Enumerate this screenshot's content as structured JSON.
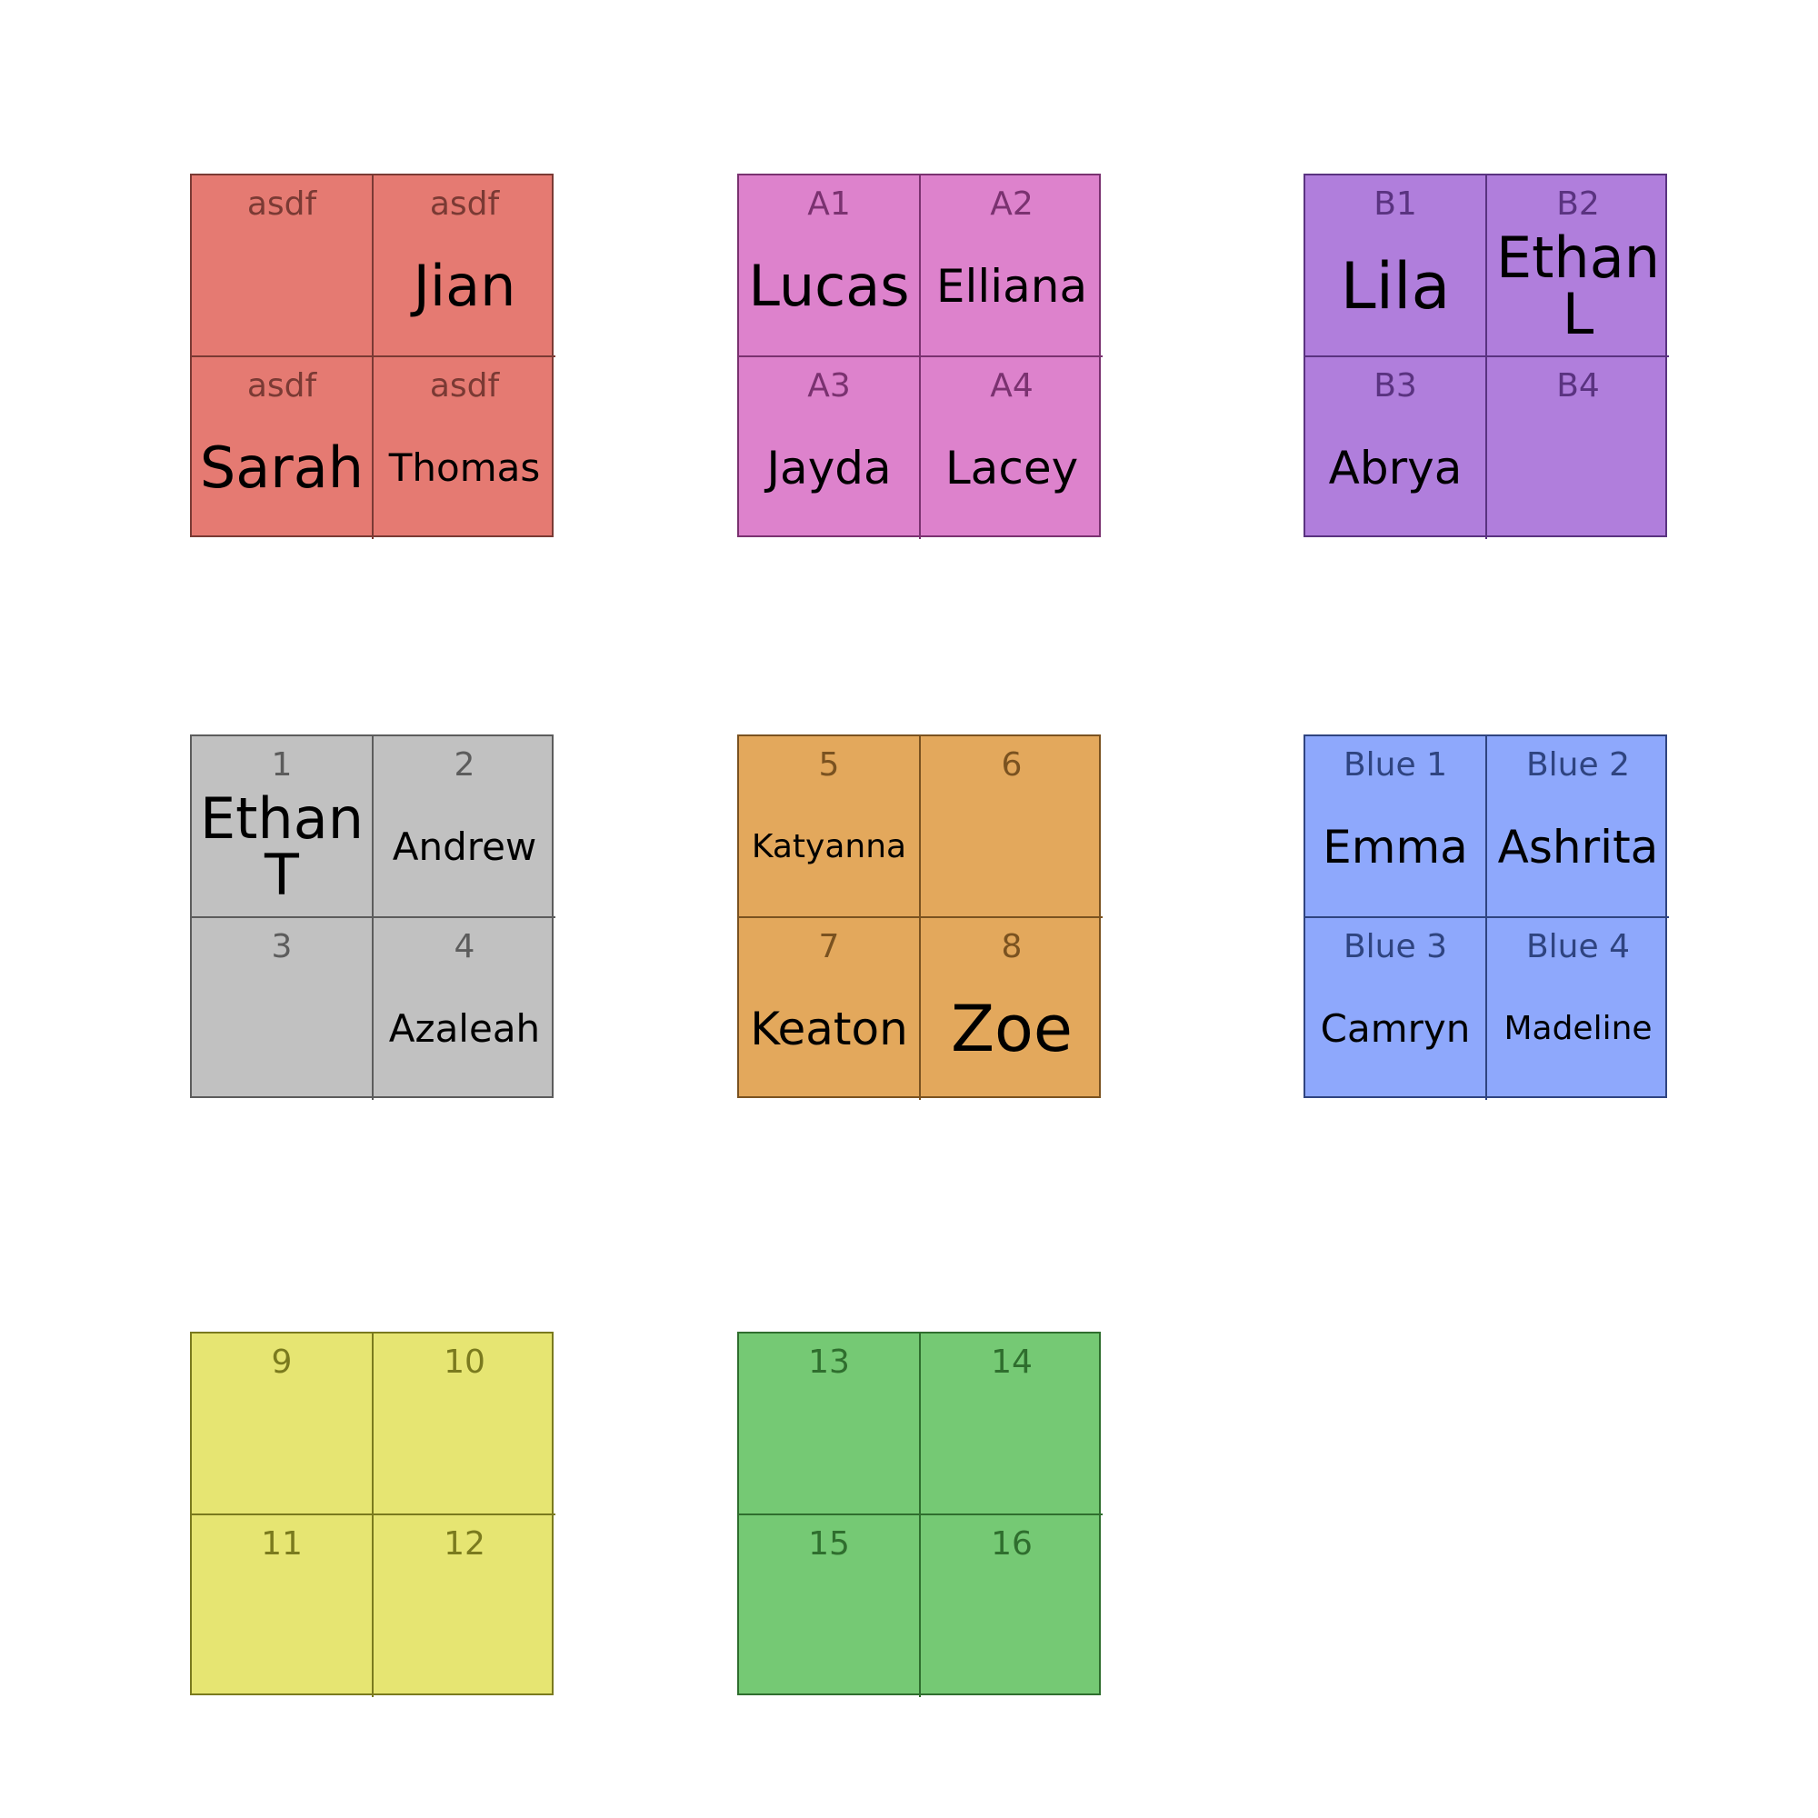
{
  "groups": [
    {
      "id": "red",
      "fill": "#e57a72",
      "stroke": "#7a3a34",
      "label_color": "#7a3a34",
      "seats": [
        {
          "label": "asdf",
          "name": ""
        },
        {
          "label": "asdf",
          "name": "Jian"
        },
        {
          "label": "asdf",
          "name": "Sarah"
        },
        {
          "label": "asdf",
          "name": "Thomas"
        }
      ]
    },
    {
      "id": "pink",
      "fill": "#dd82cc",
      "stroke": "#7a3270",
      "label_color": "#7a3270",
      "seats": [
        {
          "label": "A1",
          "name": "Lucas"
        },
        {
          "label": "A2",
          "name": "Elliana"
        },
        {
          "label": "A3",
          "name": "Jayda"
        },
        {
          "label": "A4",
          "name": "Lacey"
        }
      ]
    },
    {
      "id": "purple",
      "fill": "#b07edc",
      "stroke": "#5a3380",
      "label_color": "#5a3380",
      "seats": [
        {
          "label": "B1",
          "name": "Lila"
        },
        {
          "label": "B2",
          "name": "Ethan\nL"
        },
        {
          "label": "B3",
          "name": "Abrya"
        },
        {
          "label": "B4",
          "name": ""
        }
      ]
    },
    {
      "id": "gray",
      "fill": "#c1c1c1",
      "stroke": "#5c5c5c",
      "label_color": "#5c5c5c",
      "seats": [
        {
          "label": "1",
          "name": "Ethan\nT"
        },
        {
          "label": "2",
          "name": "Andrew"
        },
        {
          "label": "3",
          "name": ""
        },
        {
          "label": "4",
          "name": "Azaleah"
        }
      ]
    },
    {
      "id": "orange",
      "fill": "#e3a85c",
      "stroke": "#7a5220",
      "label_color": "#7a5220",
      "seats": [
        {
          "label": "5",
          "name": "Katyanna"
        },
        {
          "label": "6",
          "name": ""
        },
        {
          "label": "7",
          "name": "Keaton"
        },
        {
          "label": "8",
          "name": "Zoe"
        }
      ]
    },
    {
      "id": "blue",
      "fill": "#8ea8fc",
      "stroke": "#2f4480",
      "label_color": "#2f4480",
      "seats": [
        {
          "label": "Blue 1",
          "name": "Emma"
        },
        {
          "label": "Blue 2",
          "name": "Ashrita"
        },
        {
          "label": "Blue 3",
          "name": "Camryn"
        },
        {
          "label": "Blue 4",
          "name": "Madeline"
        }
      ]
    },
    {
      "id": "yellow",
      "fill": "#e6e572",
      "stroke": "#7a7a1e",
      "label_color": "#7a7a1e",
      "seats": [
        {
          "label": "9",
          "name": ""
        },
        {
          "label": "10",
          "name": ""
        },
        {
          "label": "11",
          "name": ""
        },
        {
          "label": "12",
          "name": ""
        }
      ]
    },
    {
      "id": "green",
      "fill": "#75c974",
      "stroke": "#2f6e2e",
      "label_color": "#2f6e2e",
      "seats": [
        {
          "label": "13",
          "name": ""
        },
        {
          "label": "14",
          "name": ""
        },
        {
          "label": "15",
          "name": ""
        },
        {
          "label": "16",
          "name": ""
        }
      ]
    }
  ]
}
